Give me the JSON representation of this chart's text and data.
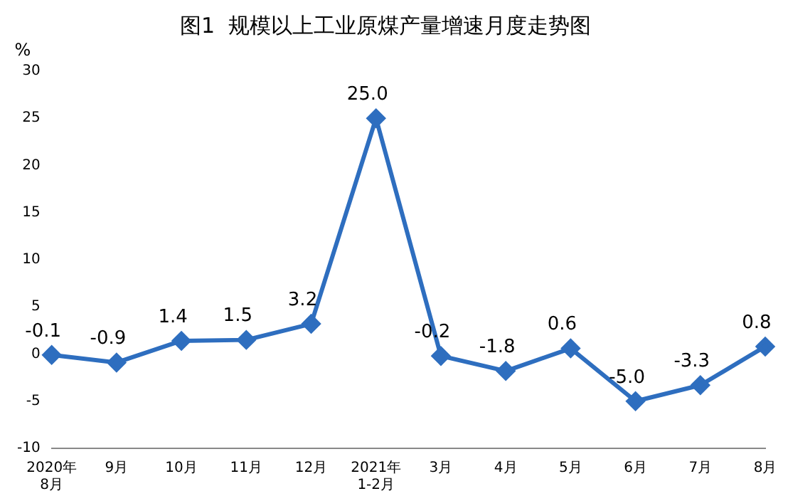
{
  "chart_data": {
    "type": "line",
    "title": "图1  规模以上工业原煤产量增速月度走势图",
    "ylabel": "%",
    "categories": [
      "2020年\n8月",
      "9月",
      "10月",
      "11月",
      "12月",
      "2021年\n1-2月",
      "3月",
      "4月",
      "5月",
      "6月",
      "7月",
      "8月"
    ],
    "series": [
      {
        "color": "#2e6ebf",
        "values": [
          -0.1,
          -0.9,
          1.4,
          1.5,
          3.2,
          25.0,
          -0.2,
          -1.8,
          0.6,
          -5.0,
          -3.3,
          0.8
        ],
        "value_labels": [
          "-0.1",
          "-0.9",
          "1.4",
          "1.5",
          "3.2",
          "25.0",
          "-0.2",
          "-1.8",
          "0.6",
          "-5.0",
          "-3.3",
          "0.8"
        ]
      }
    ],
    "ylim": [
      -10,
      30
    ],
    "yticks": [
      -10,
      -5,
      0,
      5,
      10,
      15,
      20,
      25,
      30
    ],
    "grid": false,
    "legend": false,
    "marker": "diamond",
    "line_style": "solid"
  }
}
